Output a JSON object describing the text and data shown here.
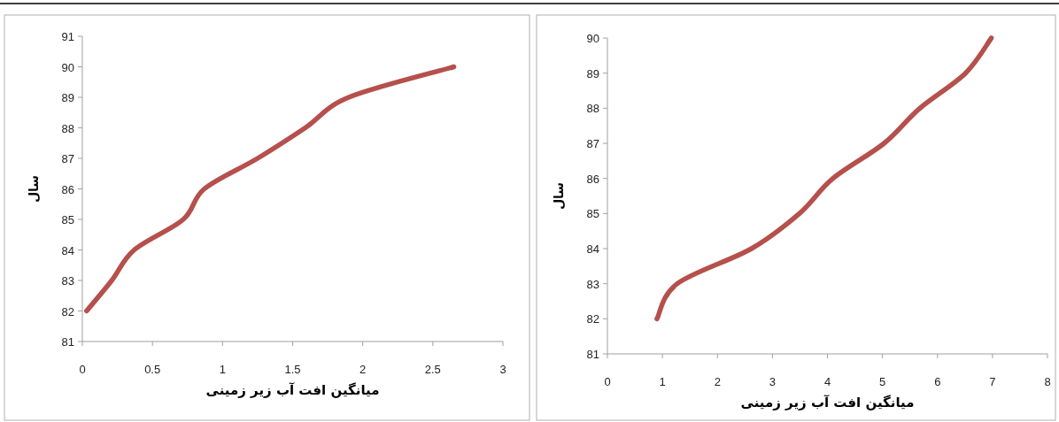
{
  "chart_data": [
    {
      "type": "line",
      "xlabel": "میانگین افت آب زیر زمینی",
      "ylabel": "سال",
      "xlim": [
        0,
        3
      ],
      "ylim": [
        81,
        91
      ],
      "xticks": [
        0,
        0.5,
        1,
        1.5,
        2,
        2.5,
        3
      ],
      "yticks": [
        81,
        82,
        83,
        84,
        85,
        86,
        87,
        88,
        89,
        90,
        91
      ],
      "marker": "none",
      "line_style": "solid",
      "series": [
        {
          "color": "#b5504c",
          "x": [
            0.03,
            0.21,
            0.37,
            0.72,
            0.87,
            1.25,
            1.59,
            1.9,
            2.65
          ],
          "values": [
            82,
            83,
            84,
            85,
            86,
            87,
            88,
            89,
            90
          ]
        }
      ]
    },
    {
      "type": "line",
      "xlabel": "میانگین افت آب زیر زمینی",
      "ylabel": "سال",
      "xlim": [
        0,
        8
      ],
      "ylim": [
        81,
        90
      ],
      "xticks": [
        0,
        1,
        2,
        3,
        4,
        5,
        6,
        7,
        8
      ],
      "yticks": [
        81,
        82,
        83,
        84,
        85,
        86,
        87,
        88,
        89,
        90
      ],
      "marker": "none",
      "line_style": "solid",
      "series": [
        {
          "color": "#b5504c",
          "x": [
            0.9,
            1.27,
            2.62,
            3.49,
            4.1,
            5.03,
            5.68,
            6.51,
            6.98
          ],
          "values": [
            82,
            83,
            84,
            85,
            86,
            87,
            88,
            89,
            90
          ]
        }
      ]
    }
  ]
}
